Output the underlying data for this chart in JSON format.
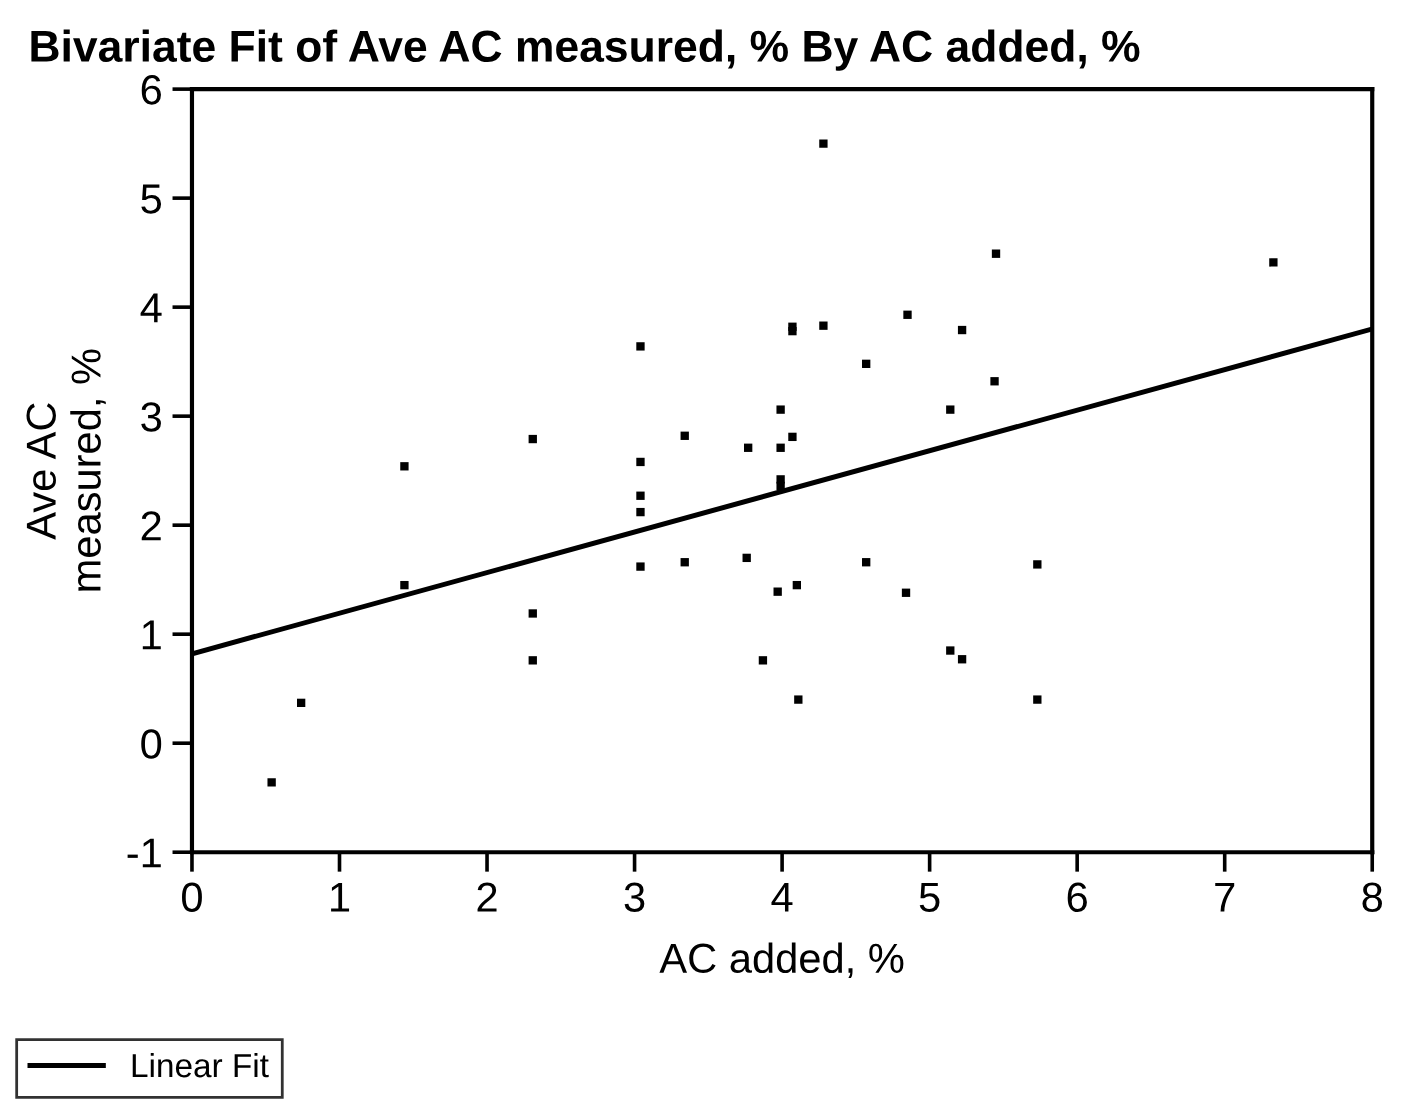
{
  "chart_data": {
    "type": "scatter",
    "title": "Bivariate Fit of Ave AC measured, % By AC added, %",
    "xlabel": "AC added, %",
    "ylabel": "Ave AC\nmeasured, %",
    "xlim": [
      0,
      8
    ],
    "ylim": [
      -1,
      6
    ],
    "xticks": [
      0,
      1,
      2,
      3,
      4,
      5,
      6,
      7,
      8
    ],
    "yticks": [
      -1,
      0,
      1,
      2,
      3,
      4,
      5,
      6
    ],
    "grid": false,
    "legend": "bottom left",
    "marker": "square",
    "series": [
      {
        "color": "#000000",
        "x": [
          0.54,
          0.74,
          1.44,
          1.44,
          2.31,
          2.31,
          2.31,
          3.04,
          3.04,
          3.04,
          3.04,
          3.04,
          3.34,
          3.34,
          3.77,
          3.76,
          3.87,
          3.97,
          3.99,
          3.99,
          3.99,
          3.99,
          4.07,
          4.07,
          4.07,
          4.1,
          4.11,
          4.28,
          4.28,
          4.57,
          4.57,
          4.85,
          4.84,
          5.14,
          5.14,
          5.22,
          5.22,
          5.45,
          5.44,
          5.73,
          5.73,
          7.33
        ],
        "values": [
          -0.36,
          0.37,
          2.54,
          1.45,
          2.79,
          1.19,
          0.76,
          3.64,
          2.58,
          2.27,
          2.12,
          1.62,
          2.82,
          1.66,
          2.71,
          1.7,
          0.76,
          1.39,
          3.06,
          2.71,
          2.42,
          2.36,
          2.81,
          3.82,
          3.78,
          1.45,
          0.4,
          5.5,
          3.83,
          3.48,
          1.66,
          3.93,
          1.38,
          3.06,
          0.85,
          0.77,
          3.79,
          4.49,
          3.32,
          1.64,
          0.4,
          4.41
        ]
      },
      {
        "type": "line",
        "name": "Linear Fit",
        "color": "#000000",
        "x": [
          0,
          8
        ],
        "values": [
          0.82,
          3.8
        ],
        "line_style": "solid",
        "marker": "none"
      }
    ]
  }
}
